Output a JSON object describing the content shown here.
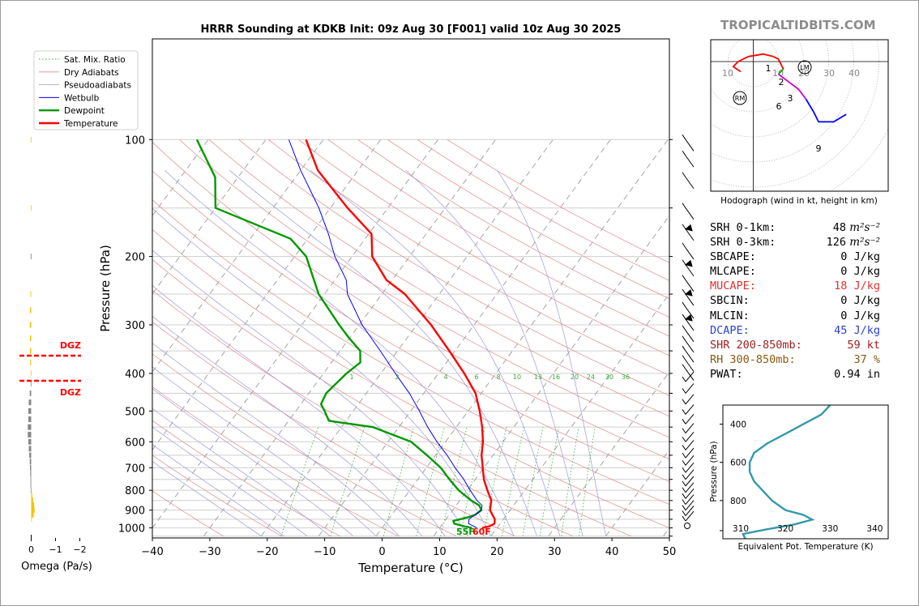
{
  "brand": "TROPICALTIDBITS.COM",
  "chart_data": [
    {
      "type": "line",
      "title": "HRRR Sounding at KDKB Init: 09z Aug 30 [F001] valid 10z Aug 30 2025",
      "xlabel": "Temperature (°C)",
      "ylabel": "Pressure (hPa)",
      "x_ticks": [
        "−40",
        "−30",
        "−20",
        "−10",
        "0",
        "10",
        "20",
        "30",
        "40",
        "50"
      ],
      "y_ticks": [
        "100",
        "200",
        "300",
        "400",
        "500",
        "600",
        "700",
        "800",
        "900",
        "1000"
      ],
      "xlim": [
        -40,
        50
      ],
      "ylim": [
        1050,
        100
      ],
      "y_scale": "log",
      "skew": "skew-T",
      "legend_position": "top-left",
      "legend": [
        "Sat. Mix. Ratio",
        "Dry Adiabats",
        "Pseudoadiabats",
        "Wetbulb",
        "Dewpoint",
        "Temperature"
      ],
      "mixing_ratio_labels": [
        "1",
        "2",
        "4",
        "6",
        "8",
        "10",
        "13",
        "16",
        "20",
        "24",
        "30",
        "36"
      ],
      "surface_labels": {
        "dewpoint": "55F",
        "temperature": "60F"
      },
      "series": [
        {
          "name": "Temperature",
          "color": "#ff0000",
          "points": [
            [
              1000,
              17.4
            ],
            [
              990,
              18.5
            ],
            [
              975,
              19.0
            ],
            [
              950,
              18.5
            ],
            [
              925,
              17.5
            ],
            [
              900,
              16.5
            ],
            [
              875,
              16.0
            ],
            [
              850,
              15.5
            ],
            [
              800,
              13.5
            ],
            [
              750,
              11.5
            ],
            [
              700,
              9.8
            ],
            [
              650,
              8.0
            ],
            [
              600,
              6.5
            ],
            [
              550,
              4.5
            ],
            [
              500,
              2.0
            ],
            [
              450,
              -1.0
            ],
            [
              400,
              -5.5
            ],
            [
              350,
              -11.0
            ],
            [
              300,
              -17.5
            ],
            [
              250,
              -26.0
            ],
            [
              230,
              -31.0
            ],
            [
              200,
              -36.5
            ],
            [
              175,
              -39.5
            ],
            [
              150,
              -47.0
            ],
            [
              120,
              -57.0
            ],
            [
              100,
              -63.0
            ]
          ]
        },
        {
          "name": "Dewpoint",
          "color": "#009900",
          "points": [
            [
              1000,
              15.6
            ],
            [
              990,
              14.0
            ],
            [
              975,
              12.0
            ],
            [
              960,
              11.5
            ],
            [
              940,
              13.5
            ],
            [
              925,
              14.5
            ],
            [
              900,
              15.0
            ],
            [
              875,
              14.0
            ],
            [
              850,
              12.0
            ],
            [
              800,
              8.5
            ],
            [
              750,
              5.5
            ],
            [
              700,
              2.5
            ],
            [
              650,
              -1.5
            ],
            [
              600,
              -6.0
            ],
            [
              550,
              -14.5
            ],
            [
              530,
              -23.0
            ],
            [
              500,
              -25.0
            ],
            [
              480,
              -26.5
            ],
            [
              450,
              -27.0
            ],
            [
              400,
              -26.0
            ],
            [
              375,
              -25.0
            ],
            [
              350,
              -26.5
            ],
            [
              325,
              -30.0
            ],
            [
              300,
              -33.5
            ],
            [
              250,
              -41.0
            ],
            [
              200,
              -48.0
            ],
            [
              180,
              -53.0
            ],
            [
              150,
              -70.0
            ],
            [
              125,
              -74.0
            ],
            [
              100,
              -82.0
            ]
          ]
        },
        {
          "name": "Wetbulb",
          "color": "#0000ff",
          "points": [
            [
              1000,
              16.5
            ],
            [
              975,
              14.5
            ],
            [
              950,
              14.0
            ],
            [
              925,
              14.5
            ],
            [
              900,
              15.0
            ],
            [
              875,
              14.5
            ],
            [
              850,
              13.0
            ],
            [
              800,
              10.5
            ],
            [
              750,
              8.0
            ],
            [
              700,
              5.0
            ],
            [
              650,
              2.0
            ],
            [
              600,
              -1.5
            ],
            [
              550,
              -5.0
            ],
            [
              500,
              -8.5
            ],
            [
              450,
              -12.5
            ],
            [
              400,
              -17.5
            ],
            [
              350,
              -23.0
            ],
            [
              300,
              -29.5
            ],
            [
              250,
              -36.0
            ],
            [
              230,
              -38.0
            ],
            [
              200,
              -43.0
            ],
            [
              175,
              -47.0
            ],
            [
              150,
              -52.0
            ],
            [
              120,
              -60.0
            ],
            [
              100,
              -66.0
            ]
          ]
        }
      ]
    },
    {
      "type": "line",
      "title": "Hodograph (wind in kt, height in km)",
      "ring_labels": [
        "10",
        "10",
        "20",
        "30",
        "40"
      ],
      "height_labels": [
        "1",
        "2",
        "3",
        "6",
        "9"
      ],
      "markers": [
        "LM",
        "RM"
      ],
      "series": [
        {
          "name": "0-1 km",
          "color": "#ff0000",
          "points": [
            [
              -5,
              -4
            ],
            [
              -8,
              -2
            ],
            [
              -6,
              0
            ],
            [
              -2,
              2
            ],
            [
              4,
              3
            ],
            [
              8,
              2
            ]
          ]
        },
        {
          "name": "1-3 km",
          "color": "#ff0000",
          "points": [
            [
              8,
              2
            ],
            [
              10,
              1
            ],
            [
              11,
              -1
            ],
            [
              12,
              -3
            ]
          ]
        },
        {
          "name": "3-6 km",
          "color": "#00aa00",
          "points": [
            [
              12,
              -3
            ],
            [
              11,
              -4
            ],
            [
              10,
              -5
            ]
          ]
        },
        {
          "name": "6-9 km",
          "color": "#cc00cc",
          "points": [
            [
              10,
              -5
            ],
            [
              14,
              -8
            ],
            [
              18,
              -11
            ],
            [
              21,
              -15
            ]
          ]
        },
        {
          "name": "9+ km",
          "color": "#0000ff",
          "points": [
            [
              21,
              -15
            ],
            [
              24,
              -20
            ],
            [
              26,
              -24
            ],
            [
              32,
              -24
            ],
            [
              37,
              -21
            ]
          ]
        }
      ]
    },
    {
      "type": "line",
      "xlabel": "Equivalent Pot. Temperature (K)",
      "ylabel": "Pressure (hPa)",
      "x_ticks": [
        "310",
        "320",
        "330",
        "340"
      ],
      "y_ticks": [
        "400",
        "600",
        "800"
      ],
      "xlim": [
        306,
        343
      ],
      "ylim": [
        1000,
        300
      ],
      "series": [
        {
          "name": "theta-e",
          "color": "#3399aa",
          "points": [
            [
              1000,
              311
            ],
            [
              975,
              310.5
            ],
            [
              950,
              316
            ],
            [
              925,
              322
            ],
            [
              900,
              326
            ],
            [
              875,
              324
            ],
            [
              850,
              320
            ],
            [
              800,
              317
            ],
            [
              750,
              315
            ],
            [
              700,
              313
            ],
            [
              650,
              312
            ],
            [
              600,
              312
            ],
            [
              550,
              313
            ],
            [
              500,
              316
            ],
            [
              450,
              320
            ],
            [
              400,
              324
            ],
            [
              350,
              328
            ],
            [
              300,
              330
            ]
          ]
        }
      ]
    },
    {
      "type": "bar",
      "xlabel": "Omega (Pa/s)",
      "x_ticks": [
        "0",
        "−1",
        "−2"
      ],
      "annotations": [
        "DGZ",
        "DGZ"
      ]
    }
  ],
  "stats": [
    {
      "label": "SRH 0-1km:",
      "value": "48",
      "unit": "m²s⁻²",
      "color": "#000000"
    },
    {
      "label": "SRH 0-3km:",
      "value": "126",
      "unit": "m²s⁻²",
      "color": "#000000"
    },
    {
      "label": "SBCAPE:",
      "value": "0 J/kg",
      "unit": "",
      "color": "#000000"
    },
    {
      "label": "MLCAPE:",
      "value": "0 J/kg",
      "unit": "",
      "color": "#000000"
    },
    {
      "label": "MUCAPE:",
      "value": "18 J/kg",
      "unit": "",
      "color": "#e03030"
    },
    {
      "label": "SBCIN:",
      "value": "0 J/kg",
      "unit": "",
      "color": "#000000"
    },
    {
      "label": "MLCIN:",
      "value": "0 J/kg",
      "unit": "",
      "color": "#000000"
    },
    {
      "label": "DCAPE:",
      "value": "45 J/kg",
      "unit": "",
      "color": "#2a3fd8"
    },
    {
      "label": "SHR 200-850mb:",
      "value": "59 kt",
      "unit": "",
      "color": "#a02020"
    },
    {
      "label": "RH 300-850mb:",
      "value": "37 %",
      "unit": "",
      "color": "#8a5a10"
    },
    {
      "label": "PWAT:",
      "value": "0.94 in",
      "unit": "",
      "color": "#000000"
    }
  ]
}
